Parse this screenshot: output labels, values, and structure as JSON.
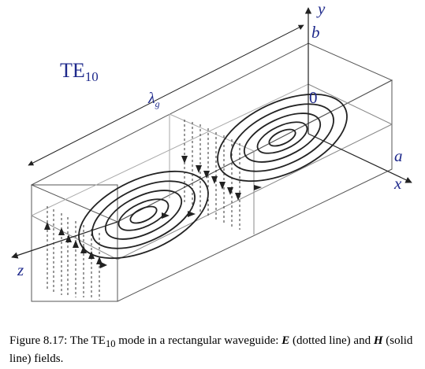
{
  "diagram": {
    "mode_label": "TE",
    "mode_sub": "10",
    "wavelength_label": "λ",
    "wavelength_sub": "g",
    "axes": {
      "y": "y",
      "x": "x",
      "z": "z",
      "b": "b",
      "a": "a",
      "origin": "0"
    },
    "colors": {
      "label_blue": "#1f2a8c",
      "line": "#222222"
    }
  },
  "caption": {
    "prefix": "Figure 8.17: The TE",
    "sub": "10",
    "middle": " mode in a rectangular waveguide: ",
    "e_symbol": "E",
    "e_desc": " (dotted line) and ",
    "h_symbol": "H",
    "h_desc": " (solid line) fields."
  }
}
